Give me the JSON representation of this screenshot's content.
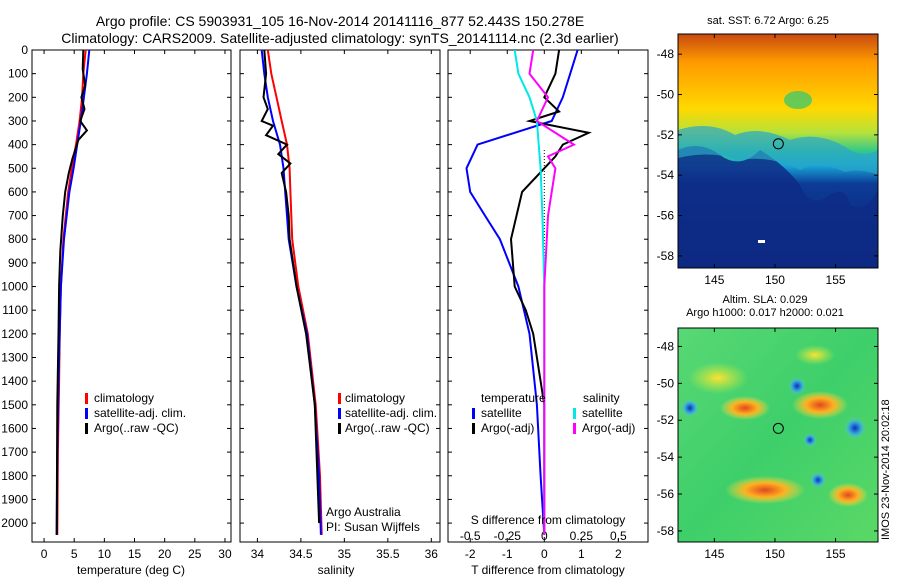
{
  "header": {
    "title_line1": "Argo profile: CS 5903931_105 16-Nov-2014 20141116_877 52.443S 150.278E",
    "title_line2": "Climatology: CARS2009. Satellite-adjusted climatology: synTS_20141114.nc (2.3d earlier)"
  },
  "colors": {
    "climatology": "#ff0000",
    "satellite": "#0000ff",
    "argo": "#000000",
    "sal_satellite": "#00e8e8",
    "sal_argo": "#ff00ff"
  },
  "chart_data": [
    {
      "id": "temperature",
      "type": "line",
      "xlabel": "temperature (deg C)",
      "ylabel": "",
      "xlim": [
        -2,
        31
      ],
      "ylim": [
        2080,
        0
      ],
      "xticks": [
        0,
        5,
        10,
        15,
        20,
        25,
        30
      ],
      "yticks": [
        0,
        100,
        200,
        300,
        400,
        500,
        600,
        700,
        800,
        900,
        1000,
        1100,
        1200,
        1300,
        1400,
        1500,
        1600,
        1700,
        1800,
        1900,
        2000
      ],
      "legend": [
        "climatology",
        "satellite-adj. clim.",
        "Argo(..raw -QC)"
      ],
      "series": [
        {
          "name": "climatology",
          "color": "#ff0000",
          "x": [
            6.9,
            6.5,
            6.3,
            5.9,
            5.3,
            4.6,
            4.0,
            3.2,
            2.8,
            2.6,
            2.5,
            2.3,
            2.2
          ],
          "y": [
            0,
            100,
            200,
            300,
            400,
            500,
            600,
            800,
            1000,
            1200,
            1400,
            1700,
            2050
          ]
        },
        {
          "name": "satellite-adj. clim.",
          "color": "#0000ff",
          "x": [
            7.5,
            7.1,
            6.6,
            6.1,
            5.5,
            4.9,
            4.2,
            3.3,
            2.8,
            2.6,
            2.4,
            2.2,
            2.1
          ],
          "y": [
            0,
            100,
            200,
            300,
            400,
            500,
            600,
            800,
            1000,
            1200,
            1400,
            1700,
            2050
          ]
        },
        {
          "name": "Argo(..raw -QC)",
          "color": "#000000",
          "x": [
            6.5,
            6.4,
            6.8,
            6.2,
            6.7,
            6.0,
            7.1,
            5.7,
            5.2,
            4.7,
            4.1,
            3.5,
            3.1,
            2.7,
            2.5,
            2.4,
            2.2,
            2.1
          ],
          "y": [
            0,
            80,
            150,
            200,
            250,
            300,
            340,
            380,
            420,
            460,
            520,
            600,
            700,
            850,
            1000,
            1200,
            1500,
            2050
          ]
        }
      ]
    },
    {
      "id": "salinity",
      "type": "line",
      "xlabel": "salinity",
      "ylabel": "",
      "xlim": [
        33.8,
        36.1
      ],
      "ylim": [
        2080,
        0
      ],
      "xticks": [
        34,
        34.5,
        35,
        35.5,
        36
      ],
      "xtick_labels": [
        "34",
        "34.5",
        "35",
        "35.5",
        "36"
      ],
      "legend": [
        "climatology",
        "satellite-adj. clim.",
        "Argo(..raw -QC)"
      ],
      "annotation_lines": [
        "Argo Australia",
        "PI: Susan Wijffels"
      ],
      "series": [
        {
          "name": "climatology",
          "color": "#ff0000",
          "x": [
            34.12,
            34.16,
            34.22,
            34.28,
            34.34,
            34.37,
            34.38,
            34.39,
            34.4,
            34.47,
            34.58,
            34.67,
            34.72,
            34.74
          ],
          "y": [
            0,
            100,
            200,
            300,
            400,
            500,
            600,
            700,
            800,
            1000,
            1200,
            1500,
            1800,
            2050
          ]
        },
        {
          "name": "satellite-adj. clim.",
          "color": "#0000ff",
          "x": [
            34.05,
            34.08,
            34.12,
            34.18,
            34.26,
            34.3,
            34.32,
            34.34,
            34.36,
            34.45,
            34.57,
            34.66,
            34.71,
            34.73
          ],
          "y": [
            0,
            100,
            200,
            300,
            400,
            500,
            600,
            700,
            800,
            1000,
            1200,
            1500,
            1800,
            2050
          ]
        },
        {
          "name": "Argo(..raw -QC)",
          "color": "#000000",
          "x": [
            34.08,
            34.1,
            34.07,
            34.12,
            34.05,
            34.18,
            34.1,
            34.34,
            34.24,
            34.38,
            34.28,
            34.33,
            34.36,
            34.37,
            34.45,
            34.56,
            34.66,
            34.71
          ],
          "y": [
            0,
            100,
            200,
            250,
            300,
            320,
            360,
            400,
            440,
            480,
            520,
            600,
            700,
            800,
            1000,
            1200,
            1500,
            2000
          ]
        }
      ]
    },
    {
      "id": "difference",
      "type": "line",
      "xlabel_top": "S difference from climatology",
      "xlabel": "T difference from climatology",
      "ylabel": "",
      "xlim": [
        -2.6,
        2.8
      ],
      "ylim": [
        2080,
        0
      ],
      "xticks": [
        -2,
        -1,
        0,
        1,
        2
      ],
      "s_ticks": [
        -0.5,
        -0.25,
        0,
        0.25,
        0.5
      ],
      "s_tick_labels": [
        "-0.5",
        "-0.25",
        "0",
        "0.25",
        "0.5"
      ],
      "legend_titles": [
        "temperature",
        "salinity"
      ],
      "legend": [
        "satellite",
        "Argo(-adj)",
        "satellite",
        "Argo(-adj)"
      ],
      "series": [
        {
          "name": "satellite",
          "color": "#0000ff",
          "x": [
            0.9,
            0.7,
            0.5,
            0.2,
            -1.8,
            -2.1,
            -2.0,
            -1.6,
            -1.2,
            -0.7,
            -0.4,
            -0.2,
            -0.1,
            0.0
          ],
          "y": [
            0,
            100,
            200,
            300,
            400,
            500,
            600,
            700,
            800,
            1000,
            1200,
            1500,
            1800,
            2050
          ]
        },
        {
          "name": "Argo(-adj)",
          "color": "#000000",
          "x": [
            0.4,
            0.3,
            0.0,
            0.4,
            -0.4,
            1.2,
            0.5,
            0.3,
            0.0,
            -0.6,
            -0.9,
            -0.8,
            -0.5,
            -0.3,
            0.0,
            0.0
          ],
          "y": [
            0,
            100,
            200,
            260,
            300,
            350,
            400,
            450,
            500,
            600,
            800,
            1000,
            1100,
            1200,
            1500,
            2050
          ]
        },
        {
          "name": "satellite",
          "color": "#00e8e8",
          "x": [
            -0.8,
            -0.7,
            -0.4,
            -0.2,
            -0.15,
            -0.1,
            -0.05,
            0.0,
            0.0,
            0.0
          ],
          "y": [
            0,
            100,
            200,
            300,
            400,
            500,
            700,
            1000,
            1500,
            2050
          ]
        },
        {
          "name": "Argo(-adj)",
          "color": "#ff00ff",
          "x": [
            -0.3,
            -0.4,
            0.1,
            -0.2,
            0.8,
            0.1,
            0.3,
            0.1,
            0.0,
            0.0,
            0.0
          ],
          "y": [
            0,
            100,
            200,
            300,
            400,
            450,
            500,
            700,
            1000,
            1500,
            2050
          ]
        }
      ]
    }
  ],
  "maps": [
    {
      "id": "sst-map",
      "title": "sat. SST: 6.72 Argo: 6.25",
      "lon_ticks": [
        145,
        150,
        155
      ],
      "lat_ticks": [
        -48,
        -50,
        -52,
        -54,
        -56,
        -58
      ],
      "argo_position": {
        "lon": 150.278,
        "lat": -52.443
      }
    },
    {
      "id": "sla-map",
      "title_line1": "Altim. SLA: 0.029",
      "title_line2": "Argo h1000: 0.017 h2000: 0.021",
      "lon_ticks": [
        145,
        150,
        155
      ],
      "lat_ticks": [
        -48,
        -50,
        -52,
        -54,
        -56,
        -58
      ],
      "argo_position": {
        "lon": 150.278,
        "lat": -52.443
      },
      "side_label": "IMOS 23-Nov-2014 20:02:18"
    }
  ]
}
